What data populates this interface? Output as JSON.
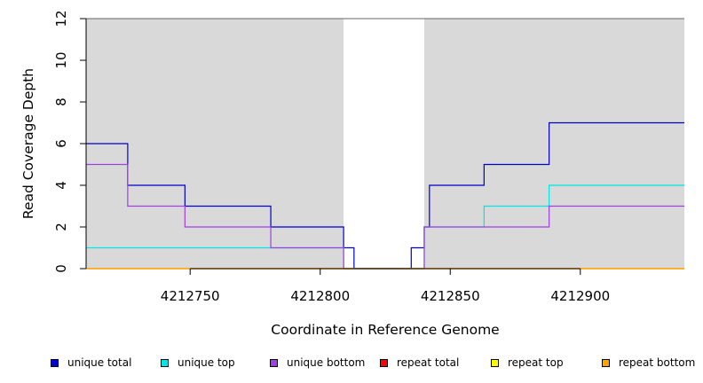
{
  "chart_data": {
    "type": "line",
    "step": true,
    "title": "",
    "xlabel": "Coordinate in Reference Genome",
    "ylabel": "Read Coverage Depth",
    "xlim": [
      4212710,
      4212940
    ],
    "ylim": [
      0,
      12
    ],
    "xticks": [
      4212750,
      4212800,
      4212850,
      4212900
    ],
    "yticks": [
      0,
      2,
      4,
      6,
      8,
      10,
      12
    ],
    "background": "#d9d9d9",
    "unshaded_region": [
      4212809,
      4212840
    ],
    "grid": false,
    "legend_position": "bottom",
    "series": [
      {
        "name": "unique total",
        "color": "#0000cc",
        "x": [
          4212710,
          4212726,
          4212748,
          4212781,
          4212809,
          4212813,
          4212835,
          4212840,
          4212842,
          4212863,
          4212888,
          4212940
        ],
        "values": [
          6,
          4,
          3,
          2,
          1,
          0,
          1,
          2,
          4,
          5,
          7,
          7
        ]
      },
      {
        "name": "unique top",
        "color": "#00e5e5",
        "x": [
          4212710,
          4212809,
          4212840,
          4212863,
          4212888,
          4212940
        ],
        "values": [
          1,
          0,
          2,
          3,
          4,
          4
        ]
      },
      {
        "name": "unique bottom",
        "color": "#a040e0",
        "x": [
          4212710,
          4212726,
          4212748,
          4212781,
          4212809,
          4212840,
          4212888,
          4212940
        ],
        "values": [
          5,
          3,
          2,
          1,
          0,
          2,
          3,
          3
        ]
      },
      {
        "name": "repeat total",
        "color": "#ff0000",
        "x": [
          4212710,
          4212940
        ],
        "values": [
          0,
          0
        ]
      },
      {
        "name": "repeat top",
        "color": "#ffff00",
        "x": [
          4212710,
          4212940
        ],
        "values": [
          0,
          0
        ]
      },
      {
        "name": "repeat bottom",
        "color": "#ffa500",
        "x": [
          4212710,
          4212940
        ],
        "values": [
          0,
          0
        ]
      }
    ]
  }
}
